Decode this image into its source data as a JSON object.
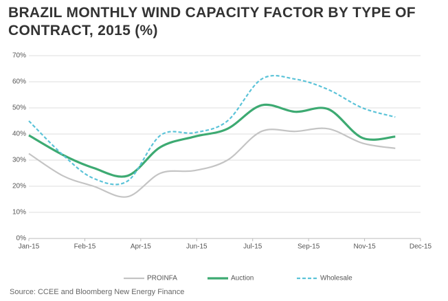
{
  "chart_data": {
    "type": "line",
    "title": "BRAZIL MONTHLY WIND CAPACITY FACTOR BY TYPE OF CONTRACT, 2015 (%)",
    "source": "Source:  CCEE and Bloomberg New Energy Finance",
    "x": [
      1,
      32,
      60,
      91,
      121,
      152,
      182,
      213,
      244,
      274,
      305,
      335
    ],
    "xlim": [
      1,
      358
    ],
    "xticks": [
      {
        "value": 1,
        "label": "Jan-15"
      },
      {
        "value": 52,
        "label": "Feb-15"
      },
      {
        "value": 103,
        "label": "Apr-15"
      },
      {
        "value": 154,
        "label": "Jun-15"
      },
      {
        "value": 205,
        "label": "Jul-15"
      },
      {
        "value": 256,
        "label": "Sep-15"
      },
      {
        "value": 307,
        "label": "Nov-15"
      },
      {
        "value": 358,
        "label": "Dec-15"
      }
    ],
    "ylim": [
      0,
      70
    ],
    "yticks": [
      {
        "value": 0,
        "label": "0%"
      },
      {
        "value": 10,
        "label": "10%"
      },
      {
        "value": 20,
        "label": "20%"
      },
      {
        "value": 30,
        "label": "30%"
      },
      {
        "value": 40,
        "label": "40%"
      },
      {
        "value": 50,
        "label": "50%"
      },
      {
        "value": 60,
        "label": "60%"
      },
      {
        "value": 70,
        "label": "70%"
      }
    ],
    "grid": true,
    "series": [
      {
        "name": "PROINFA",
        "color": "#c4c4c4",
        "dash": false,
        "values": [
          32.5,
          24,
          20,
          16,
          25,
          26,
          30,
          41,
          41,
          42,
          36.5,
          34.5
        ]
      },
      {
        "name": "Auction",
        "color": "#3daa72",
        "dash": false,
        "values": [
          39.5,
          32,
          27,
          24,
          35,
          39,
          42,
          51,
          48.5,
          49.5,
          38.5,
          39
        ]
      },
      {
        "name": "Wholesale",
        "color": "#5bc3d8",
        "dash": true,
        "values": [
          45,
          32,
          23,
          22,
          39.5,
          40.5,
          45,
          61,
          61,
          57,
          50,
          46.5
        ]
      }
    ]
  }
}
